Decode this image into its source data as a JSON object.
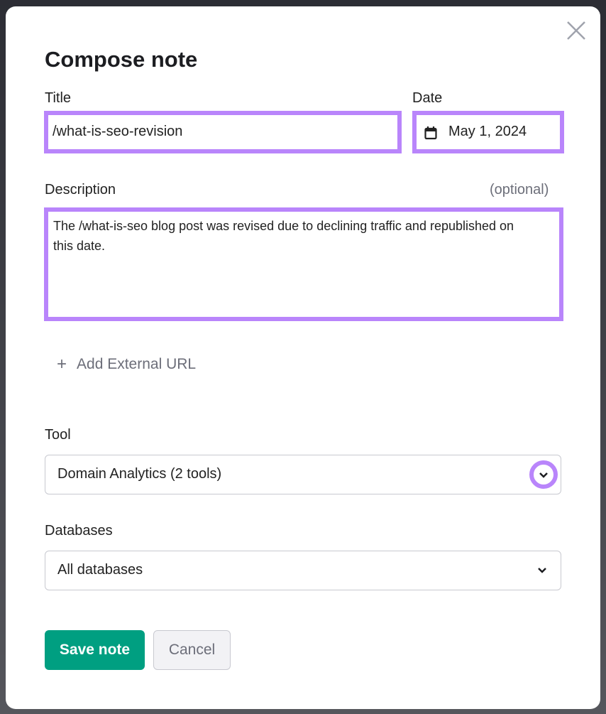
{
  "dialog": {
    "title": "Compose note",
    "close_icon": "close-icon",
    "title_field": {
      "label": "Title",
      "value": "/what-is-seo-revision"
    },
    "date_field": {
      "label": "Date",
      "value": "May 1, 2024",
      "icon": "calendar-icon"
    },
    "description_field": {
      "label": "Description",
      "hint": "(optional)",
      "value": "The /what-is-seo blog post was revised due to declining traffic and republished on this date."
    },
    "add_url_label": "Add External URL",
    "tool_field": {
      "label": "Tool",
      "value": "Domain Analytics (2 tools)"
    },
    "databases_field": {
      "label": "Databases",
      "value": "All databases"
    },
    "save_label": "Save note",
    "cancel_label": "Cancel"
  },
  "colors": {
    "highlight": "#b985fb",
    "primary": "#009f81"
  }
}
